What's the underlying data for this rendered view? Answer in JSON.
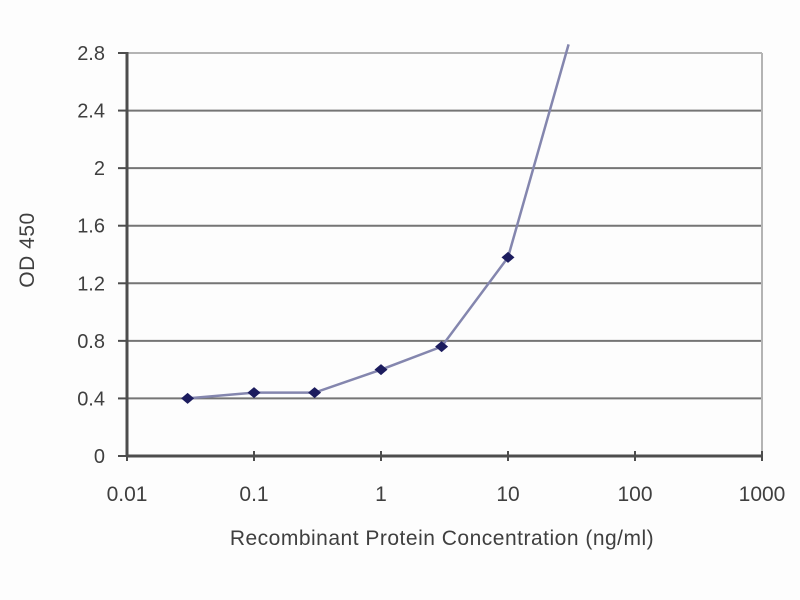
{
  "chart_data": {
    "type": "line",
    "title": "",
    "xlabel": "Recombinant Protein Concentration (ng/ml)",
    "ylabel": "OD 450",
    "x_scale": "log",
    "y_scale": "linear",
    "xlim": [
      0.01,
      1000
    ],
    "ylim": [
      0,
      2.8
    ],
    "x_ticks": [
      0.01,
      0.1,
      1,
      10,
      100,
      1000
    ],
    "x_tick_labels": [
      "0.01",
      "0.1",
      "1",
      "10",
      "100",
      "1000"
    ],
    "y_ticks": [
      0,
      0.4,
      0.8,
      1.2,
      1.6,
      2,
      2.4,
      2.8
    ],
    "y_tick_labels": [
      "0",
      "0.4",
      "0.8",
      "1.2",
      "1.6",
      "2",
      "2.4",
      "2.8"
    ],
    "grid": "horizontal",
    "legend": "none",
    "series": [
      {
        "name": "OD 450",
        "x": [
          0.03,
          0.1,
          0.3,
          1,
          3,
          10,
          30
        ],
        "y": [
          0.4,
          0.44,
          0.44,
          0.6,
          0.76,
          1.38,
          2.86
        ],
        "marker": "diamond",
        "last_point_off_scale": true
      }
    ],
    "colors": {
      "line": "#8486ae",
      "marker": "#1c1c5e",
      "gridline": "#757575",
      "axis_dark": "#4d4d4d",
      "border_light": "#b4b4b4",
      "tick_text": "#3f3f3f"
    }
  }
}
